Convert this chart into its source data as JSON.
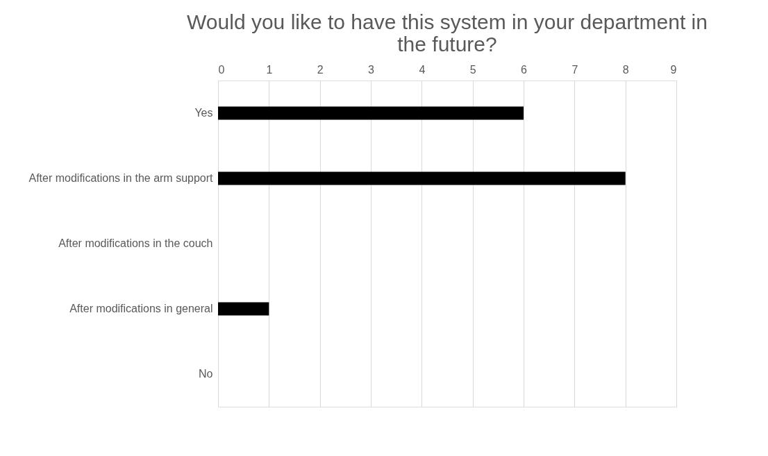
{
  "chart_data": {
    "type": "bar",
    "orientation": "horizontal",
    "title": "Would you like to have this system in your department in the future?",
    "categories": [
      "Yes",
      "After modifications in the arm support",
      "After modifications in the couch",
      "After modifications in general",
      "No"
    ],
    "values": [
      6,
      8,
      0,
      1,
      0
    ],
    "color": "#000000",
    "xlim": [
      0,
      9
    ],
    "xticks": [
      0,
      1,
      2,
      3,
      4,
      5,
      6,
      7,
      8,
      9
    ],
    "grid": "x"
  }
}
